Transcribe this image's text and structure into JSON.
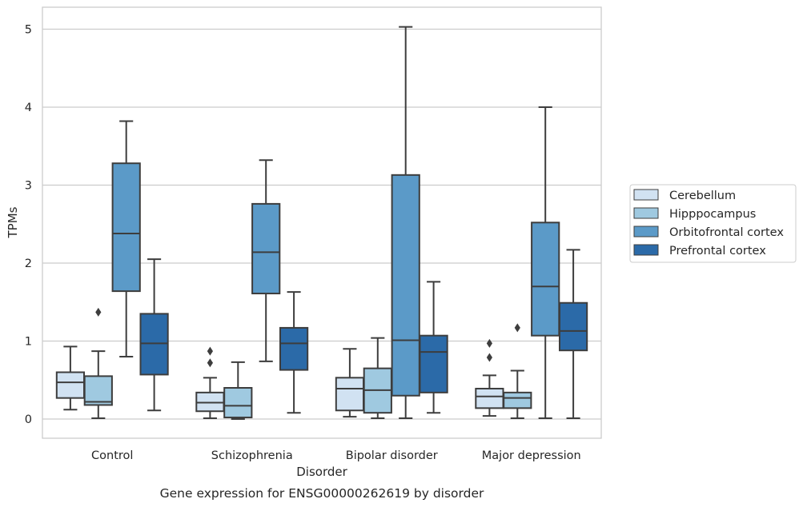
{
  "chart_data": {
    "type": "box",
    "title": "",
    "caption": "Gene expression for ENSG00000262619 by disorder",
    "xlabel": "Disorder",
    "ylabel": "TPMs",
    "ylim": [
      -0.25,
      5.3
    ],
    "yticks": [
      0,
      1,
      2,
      3,
      4,
      5
    ],
    "grid": true,
    "legend_position": "right",
    "categories": [
      "Control",
      "Schizophrenia",
      "Bipolar disorder",
      "Major depression"
    ],
    "series": [
      {
        "name": "Cerebellum",
        "color": "#d1e2f2",
        "boxes": [
          {
            "whisker_low": 0.12,
            "q1": 0.27,
            "median": 0.47,
            "q3": 0.6,
            "whisker_high": 0.93,
            "outliers": []
          },
          {
            "whisker_low": 0.01,
            "q1": 0.1,
            "median": 0.21,
            "q3": 0.34,
            "whisker_high": 0.53,
            "outliers": [
              0.72,
              0.87
            ]
          },
          {
            "whisker_low": 0.03,
            "q1": 0.11,
            "median": 0.39,
            "q3": 0.53,
            "whisker_high": 0.9,
            "outliers": []
          },
          {
            "whisker_low": 0.04,
            "q1": 0.14,
            "median": 0.29,
            "q3": 0.39,
            "whisker_high": 0.56,
            "outliers": [
              0.79,
              0.97
            ]
          }
        ]
      },
      {
        "name": "Hipppocampus",
        "color": "#9fc9e0",
        "boxes": [
          {
            "whisker_low": 0.01,
            "q1": 0.18,
            "median": 0.22,
            "q3": 0.55,
            "whisker_high": 0.87,
            "outliers": [
              1.37
            ]
          },
          {
            "whisker_low": 0.0,
            "q1": 0.02,
            "median": 0.17,
            "q3": 0.4,
            "whisker_high": 0.73,
            "outliers": []
          },
          {
            "whisker_low": 0.01,
            "q1": 0.08,
            "median": 0.37,
            "q3": 0.65,
            "whisker_high": 1.04,
            "outliers": []
          },
          {
            "whisker_low": 0.01,
            "q1": 0.14,
            "median": 0.27,
            "q3": 0.34,
            "whisker_high": 0.62,
            "outliers": [
              1.17
            ]
          }
        ]
      },
      {
        "name": "Orbitofrontal cortex",
        "color": "#5b9ac8",
        "boxes": [
          {
            "whisker_low": 0.8,
            "q1": 1.64,
            "median": 2.38,
            "q3": 3.28,
            "whisker_high": 3.82,
            "outliers": []
          },
          {
            "whisker_low": 0.74,
            "q1": 1.61,
            "median": 2.14,
            "q3": 2.76,
            "whisker_high": 3.32,
            "outliers": []
          },
          {
            "whisker_low": 0.01,
            "q1": 0.3,
            "median": 1.01,
            "q3": 3.13,
            "whisker_high": 5.03,
            "outliers": []
          },
          {
            "whisker_low": 0.01,
            "q1": 1.07,
            "median": 1.7,
            "q3": 2.52,
            "whisker_high": 4.0,
            "outliers": []
          }
        ]
      },
      {
        "name": "Prefrontal cortex",
        "color": "#2b6aa8",
        "boxes": [
          {
            "whisker_low": 0.11,
            "q1": 0.57,
            "median": 0.97,
            "q3": 1.35,
            "whisker_high": 2.05,
            "outliers": []
          },
          {
            "whisker_low": 0.08,
            "q1": 0.63,
            "median": 0.97,
            "q3": 1.17,
            "whisker_high": 1.63,
            "outliers": []
          },
          {
            "whisker_low": 0.08,
            "q1": 0.34,
            "median": 0.86,
            "q3": 1.07,
            "whisker_high": 1.76,
            "outliers": []
          },
          {
            "whisker_low": 0.01,
            "q1": 0.88,
            "median": 1.13,
            "q3": 1.49,
            "whisker_high": 2.17,
            "outliers": []
          }
        ]
      }
    ]
  }
}
